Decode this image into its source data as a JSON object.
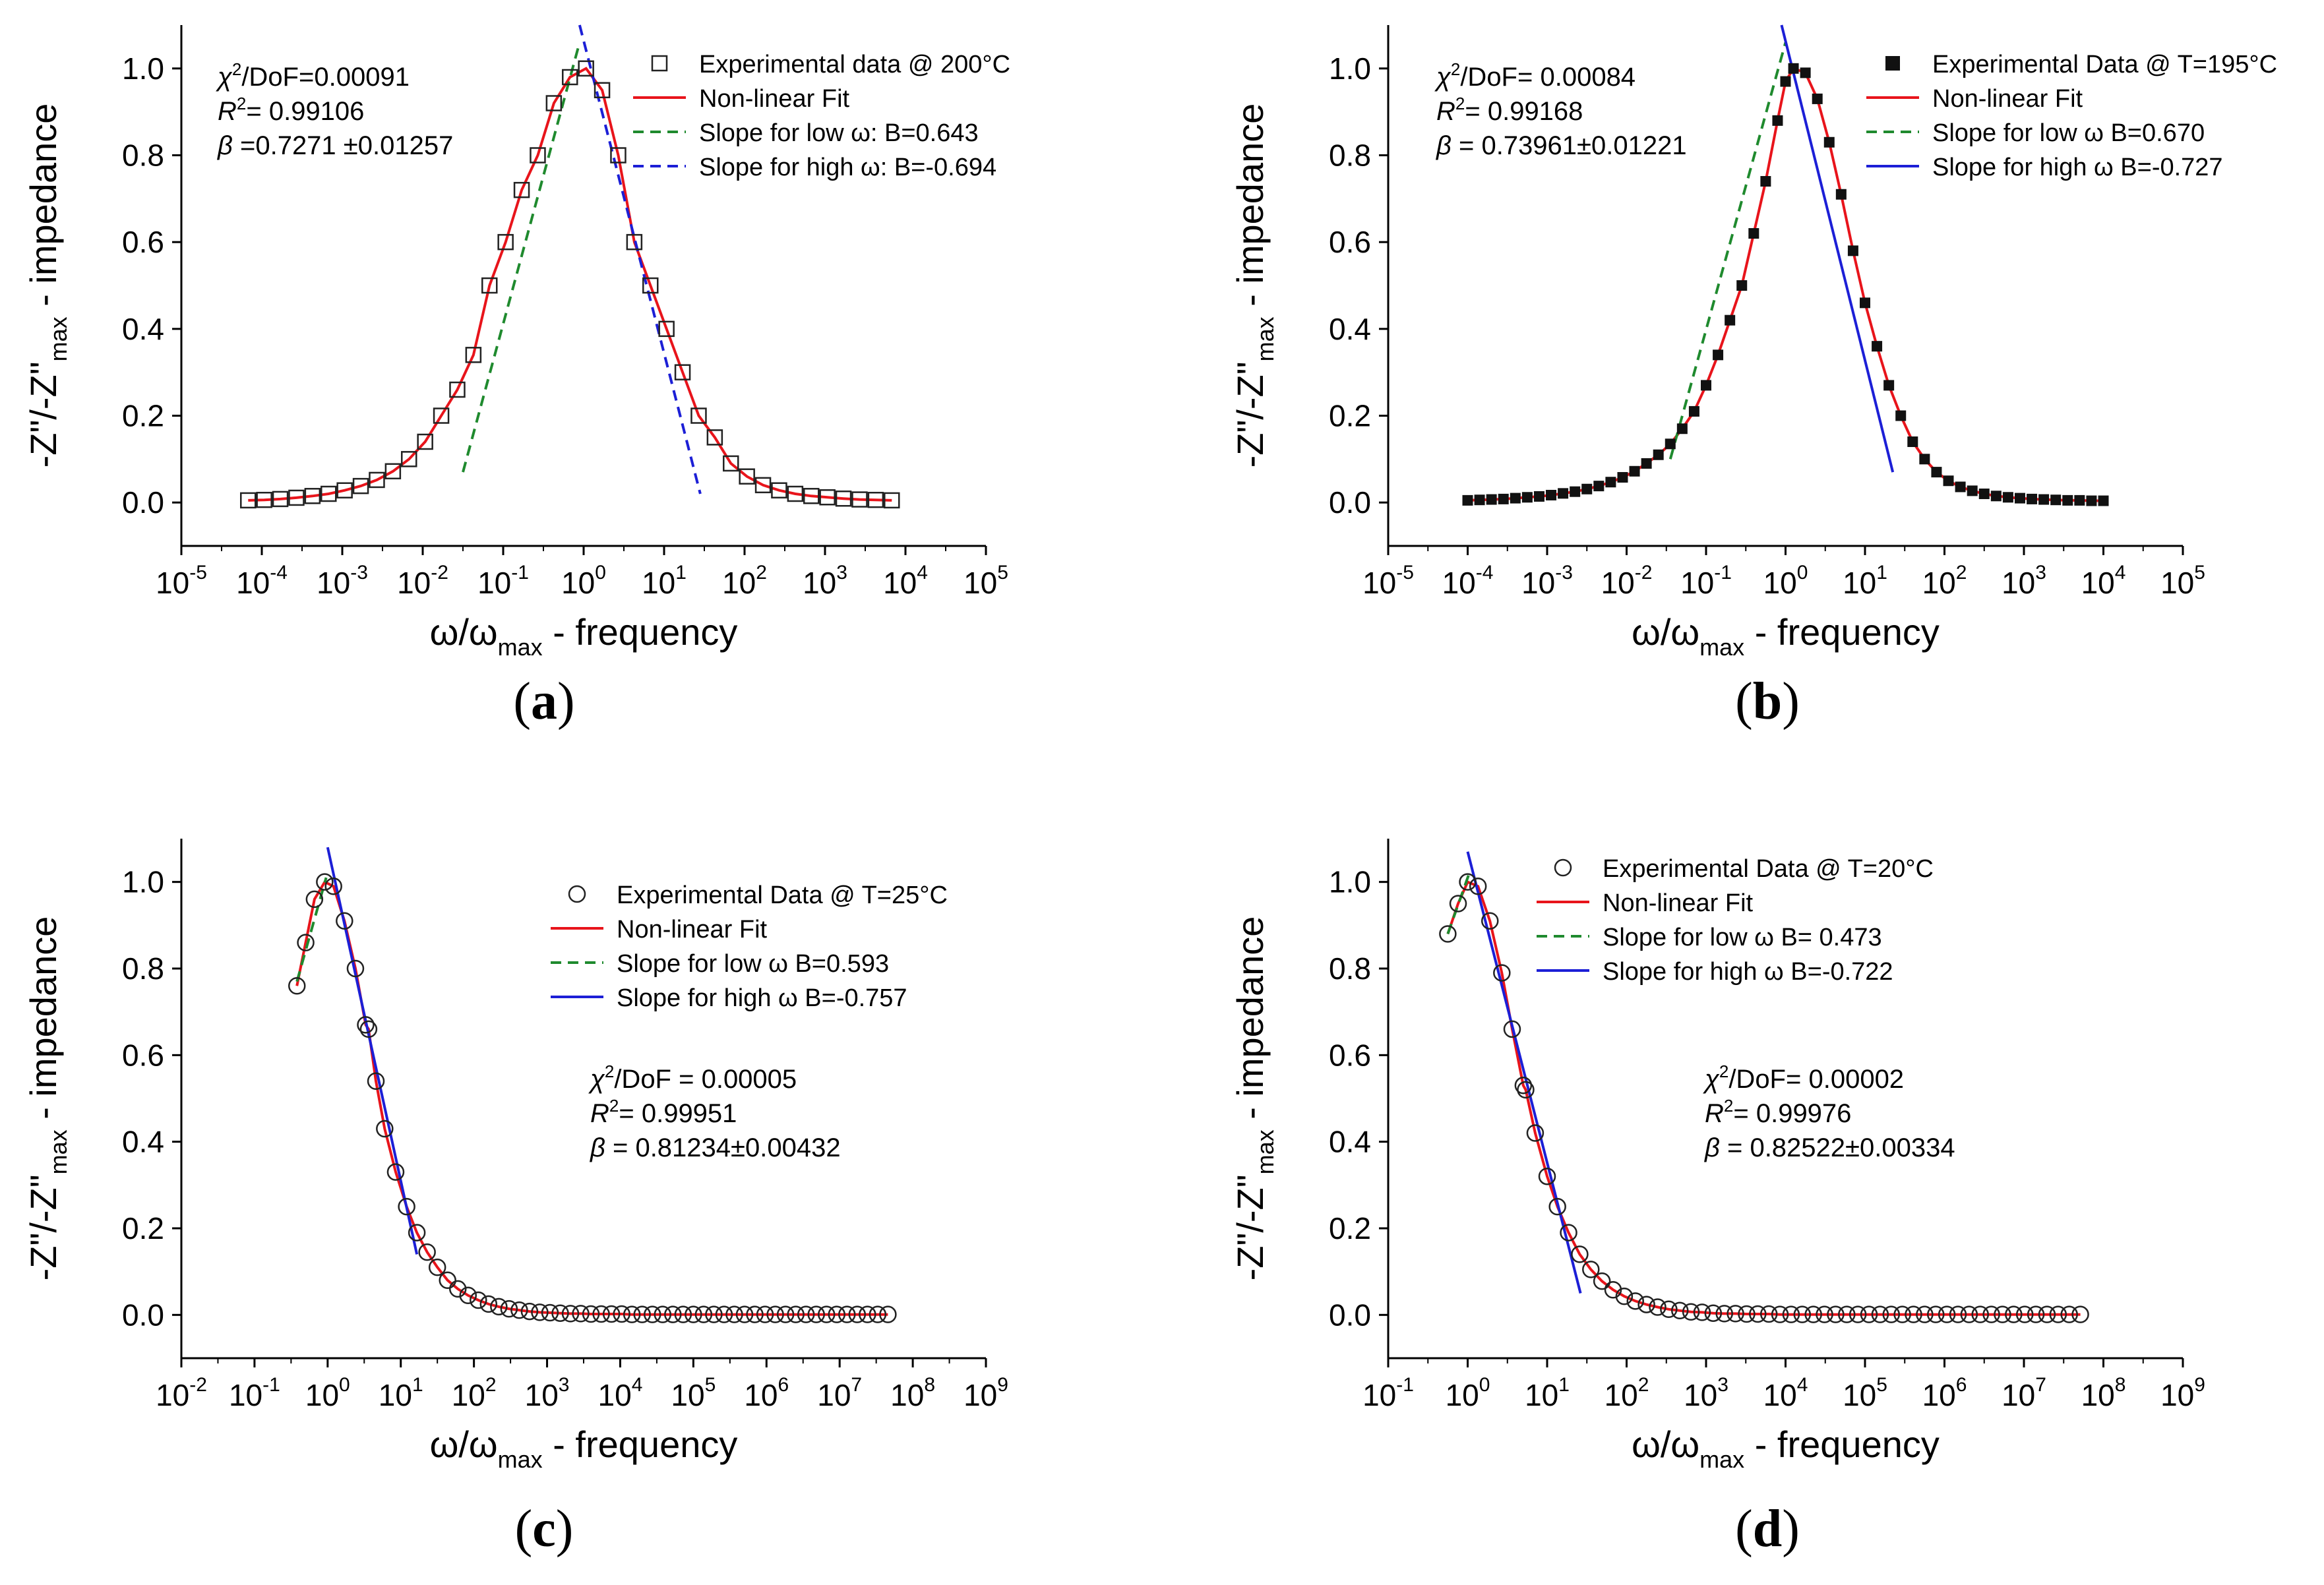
{
  "chart_data": [
    {
      "panel": "(a)",
      "type": "scatter",
      "x_scale": "log",
      "xlim_exp": [
        -5,
        5
      ],
      "ylim": [
        -0.1,
        1.1
      ],
      "yticks": [
        0.0,
        0.2,
        0.4,
        0.6,
        0.8,
        1.0
      ],
      "xlabel": "ω/ω",
      "xlabel_sub": "max",
      "xlabel_tail": " - frequency",
      "ylabel": "-Z\"/-Z\"",
      "ylabel_sub": "max",
      "ylabel_tail": " - impedance",
      "tick_base": "10",
      "stats": {
        "chi2": "/DoF=0.00091",
        "r2": "= 0.99106",
        "beta": "=0.7271 ±0.01257"
      },
      "legend": {
        "data": "Experimental data @ 200°C",
        "fit": "Non-linear Fit",
        "low": "Slope for low ω: B=0.643",
        "high": "Slope for high ω: B=-0.694"
      },
      "series": {
        "experimental": {
          "marker": "open-square",
          "x_log": [
            -4.17,
            -3.97,
            -3.77,
            -3.57,
            -3.37,
            -3.17,
            -2.97,
            -2.77,
            -2.57,
            -2.37,
            -2.17,
            -1.97,
            -1.77,
            -1.57,
            -1.37,
            -1.17,
            -0.97,
            -0.77,
            -0.57,
            -0.37,
            -0.17,
            0.03,
            0.23,
            0.43,
            0.63,
            0.83,
            1.03,
            1.23,
            1.43,
            1.63,
            1.83,
            2.03,
            2.23,
            2.43,
            2.63,
            2.83,
            3.03,
            3.23,
            3.43,
            3.63,
            3.83
          ],
          "y": [
            0.005,
            0.006,
            0.008,
            0.011,
            0.015,
            0.02,
            0.028,
            0.038,
            0.052,
            0.072,
            0.1,
            0.14,
            0.2,
            0.26,
            0.34,
            0.5,
            0.6,
            0.72,
            0.8,
            0.92,
            0.98,
            1.0,
            0.95,
            0.8,
            0.6,
            0.5,
            0.4,
            0.3,
            0.2,
            0.15,
            0.09,
            0.06,
            0.04,
            0.028,
            0.02,
            0.015,
            0.012,
            0.009,
            0.007,
            0.006,
            0.005
          ]
        },
        "fit": {
          "color": "#e8141b",
          "style": "solid"
        },
        "low_slope": {
          "color": "#1f8a2e",
          "style": "dashed",
          "x_log": [
            -1.5,
            -0.05
          ],
          "y": [
            0.07,
            1.06
          ]
        },
        "high_slope": {
          "color": "#1c1fd6",
          "style": "dashed",
          "x_log": [
            -0.05,
            1.45
          ],
          "y": [
            1.1,
            0.02
          ]
        }
      }
    },
    {
      "panel": "(b)",
      "type": "scatter",
      "x_scale": "log",
      "xlim_exp": [
        -5,
        5
      ],
      "ylim": [
        -0.1,
        1.1
      ],
      "yticks": [
        0.0,
        0.2,
        0.4,
        0.6,
        0.8,
        1.0
      ],
      "xlabel": "ω/ω",
      "xlabel_sub": "max",
      "xlabel_tail": " - frequency",
      "ylabel": "-Z\"/-Z\"",
      "ylabel_sub": "max",
      "ylabel_tail": " - impedance",
      "tick_base": "10",
      "stats": {
        "chi2": "/DoF= 0.00084",
        "r2": "= 0.99168",
        "beta": "= 0.73961±0.01221"
      },
      "legend": {
        "data": "Experimental Data @ T=195°C",
        "fit": "Non-linear Fit",
        "low": "Slope for low ω B=0.670",
        "high": "Slope for high ω B=-0.727"
      },
      "series": {
        "experimental": {
          "marker": "filled-square",
          "x_log": [
            -4.0,
            -3.85,
            -3.7,
            -3.55,
            -3.4,
            -3.25,
            -3.1,
            -2.95,
            -2.8,
            -2.65,
            -2.5,
            -2.35,
            -2.2,
            -2.05,
            -1.9,
            -1.75,
            -1.6,
            -1.45,
            -1.3,
            -1.15,
            -1.0,
            -0.85,
            -0.7,
            -0.55,
            -0.4,
            -0.25,
            -0.1,
            0.0,
            0.1,
            0.25,
            0.4,
            0.55,
            0.7,
            0.85,
            1.0,
            1.15,
            1.3,
            1.45,
            1.6,
            1.75,
            1.9,
            2.05,
            2.2,
            2.35,
            2.5,
            2.65,
            2.8,
            2.95,
            3.1,
            3.25,
            3.4,
            3.55,
            3.7,
            3.85,
            4.0
          ],
          "y": [
            0.005,
            0.006,
            0.007,
            0.008,
            0.01,
            0.012,
            0.014,
            0.017,
            0.021,
            0.025,
            0.031,
            0.038,
            0.047,
            0.058,
            0.072,
            0.09,
            0.11,
            0.135,
            0.17,
            0.21,
            0.27,
            0.34,
            0.42,
            0.5,
            0.62,
            0.74,
            0.88,
            0.97,
            1.0,
            0.99,
            0.93,
            0.83,
            0.71,
            0.58,
            0.46,
            0.36,
            0.27,
            0.2,
            0.14,
            0.1,
            0.07,
            0.05,
            0.036,
            0.027,
            0.02,
            0.015,
            0.012,
            0.01,
            0.008,
            0.007,
            0.006,
            0.005,
            0.005,
            0.004,
            0.004
          ]
        },
        "fit": {
          "color": "#e8141b",
          "style": "solid"
        },
        "low_slope": {
          "color": "#1f8a2e",
          "style": "dashed",
          "x_log": [
            -1.45,
            0.0
          ],
          "y": [
            0.1,
            1.06
          ]
        },
        "high_slope": {
          "color": "#1c1fd6",
          "style": "solid",
          "x_log": [
            -0.05,
            1.35
          ],
          "y": [
            1.1,
            0.07
          ]
        }
      }
    },
    {
      "panel": "(c)",
      "type": "scatter",
      "x_scale": "log",
      "xlim_exp": [
        -2,
        9
      ],
      "ylim": [
        -0.1,
        1.1
      ],
      "yticks": [
        0.0,
        0.2,
        0.4,
        0.6,
        0.8,
        1.0
      ],
      "xlabel": "ω/ω",
      "xlabel_sub": "max",
      "xlabel_tail": " - frequency",
      "ylabel": "-Z\"/-Z\"",
      "ylabel_sub": "max",
      "ylabel_tail": " - impedance",
      "tick_base": "10",
      "stats": {
        "chi2": "/DoF = 0.00005",
        "r2": "= 0.99951",
        "beta": "= 0.81234±0.00432"
      },
      "legend": {
        "data": "Experimental Data @ T=25°C",
        "fit": "Non-linear Fit",
        "low": "Slope for low ω   B=0.593",
        "high": "Slope for high ω   B=-0.757"
      },
      "series": {
        "experimental": {
          "marker": "open-circle",
          "x_log": [
            -0.42,
            -0.3,
            -0.18,
            -0.04,
            0.08,
            0.23,
            0.38,
            0.52,
            0.56,
            0.66,
            0.78,
            0.93,
            1.08,
            1.22,
            1.36,
            1.5,
            1.64,
            1.78,
            1.92,
            2.06,
            2.2,
            2.34,
            2.48,
            2.62,
            2.76,
            2.9,
            3.04,
            3.18,
            3.32,
            3.46,
            3.6,
            3.74,
            3.88,
            4.02,
            4.16,
            4.3,
            4.44,
            4.58,
            4.72,
            4.86,
            5.0,
            5.14,
            5.28,
            5.42,
            5.56,
            5.7,
            5.84,
            5.98,
            6.12,
            6.26,
            6.4,
            6.54,
            6.68,
            6.82,
            6.96,
            7.1,
            7.24,
            7.38,
            7.52,
            7.66
          ],
          "y": [
            0.76,
            0.86,
            0.96,
            1.0,
            0.99,
            0.91,
            0.8,
            0.67,
            0.66,
            0.54,
            0.43,
            0.33,
            0.25,
            0.19,
            0.145,
            0.11,
            0.08,
            0.06,
            0.045,
            0.034,
            0.025,
            0.019,
            0.014,
            0.011,
            0.008,
            0.006,
            0.005,
            0.004,
            0.003,
            0.003,
            0.002,
            0.002,
            0.002,
            0.002,
            0.001,
            0.001,
            0.001,
            0.001,
            0.001,
            0.001,
            0.001,
            0.001,
            0.001,
            0.001,
            0.001,
            0.001,
            0.001,
            0.001,
            0.001,
            0.001,
            0.001,
            0.001,
            0.001,
            0.001,
            0.001,
            0.001,
            0.001,
            0.001,
            0.001,
            0.001
          ]
        },
        "fit": {
          "color": "#e8141b",
          "style": "solid"
        },
        "low_slope": {
          "color": "#1f8a2e",
          "style": "dashed",
          "x_log": [
            -0.42,
            -0.02
          ],
          "y": [
            0.77,
            1.01
          ]
        },
        "high_slope": {
          "color": "#1c1fd6",
          "style": "solid",
          "x_log": [
            0.0,
            1.22
          ],
          "y": [
            1.08,
            0.14
          ]
        }
      }
    },
    {
      "panel": "(d)",
      "type": "scatter",
      "x_scale": "log",
      "xlim_exp": [
        -1,
        9
      ],
      "ylim": [
        -0.1,
        1.1
      ],
      "yticks": [
        0.0,
        0.2,
        0.4,
        0.6,
        0.8,
        1.0
      ],
      "xlabel": "ω/ω",
      "xlabel_sub": "max",
      "xlabel_tail": " - frequency",
      "ylabel": "-Z\"/-Z\"",
      "ylabel_sub": "max",
      "ylabel_tail": " - impedance",
      "tick_base": "10",
      "stats": {
        "chi2": "/DoF= 0.00002",
        "r2": "= 0.99976",
        "beta": "= 0.82522±0.00334"
      },
      "legend": {
        "data": "Experimental Data @ T=20°C",
        "fit": "Non-linear Fit",
        "low": "Slope for low ω   B= 0.473",
        "high": "Slope for high ω   B=-0.722"
      },
      "series": {
        "experimental": {
          "marker": "open-circle",
          "x_log": [
            -0.25,
            -0.12,
            0.0,
            0.13,
            0.28,
            0.43,
            0.56,
            0.7,
            0.73,
            0.85,
            1.0,
            1.13,
            1.27,
            1.41,
            1.55,
            1.69,
            1.83,
            1.97,
            2.11,
            2.25,
            2.39,
            2.53,
            2.67,
            2.81,
            2.95,
            3.09,
            3.23,
            3.37,
            3.51,
            3.65,
            3.79,
            3.93,
            4.07,
            4.21,
            4.35,
            4.49,
            4.63,
            4.77,
            4.91,
            5.05,
            5.19,
            5.33,
            5.47,
            5.61,
            5.75,
            5.89,
            6.03,
            6.17,
            6.31,
            6.45,
            6.59,
            6.73,
            6.87,
            7.01,
            7.15,
            7.29,
            7.43,
            7.57,
            7.71
          ],
          "y": [
            0.88,
            0.95,
            1.0,
            0.99,
            0.91,
            0.79,
            0.66,
            0.53,
            0.52,
            0.42,
            0.32,
            0.25,
            0.19,
            0.14,
            0.105,
            0.078,
            0.058,
            0.043,
            0.032,
            0.024,
            0.018,
            0.013,
            0.01,
            0.007,
            0.006,
            0.004,
            0.003,
            0.003,
            0.002,
            0.002,
            0.002,
            0.001,
            0.001,
            0.001,
            0.001,
            0.001,
            0.001,
            0.001,
            0.001,
            0.001,
            0.001,
            0.001,
            0.001,
            0.001,
            0.001,
            0.001,
            0.001,
            0.001,
            0.001,
            0.001,
            0.001,
            0.001,
            0.001,
            0.001,
            0.001,
            0.001,
            0.001,
            0.001,
            0.001
          ]
        },
        "fit": {
          "color": "#e8141b",
          "style": "solid"
        },
        "low_slope": {
          "color": "#1f8a2e",
          "style": "dashed",
          "x_log": [
            -0.25,
            0.02
          ],
          "y": [
            0.88,
            1.02
          ]
        },
        "high_slope": {
          "color": "#1c1fd6",
          "style": "solid",
          "x_log": [
            0.0,
            1.42
          ],
          "y": [
            1.07,
            0.05
          ]
        }
      }
    }
  ]
}
